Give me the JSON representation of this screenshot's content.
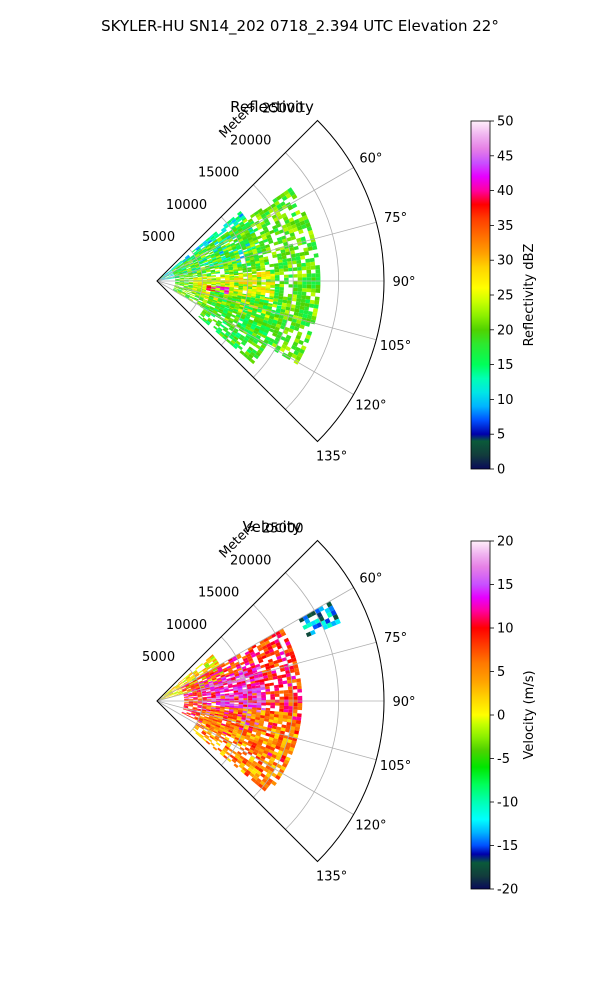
{
  "figure": {
    "title": "SKYLER-HU  SN14_202  0718_2.394 UTC Elevation 22°"
  },
  "chart_data": [
    {
      "type": "heatmap",
      "projection": "polar-sector",
      "title": "Reflectivity",
      "radial_axis_label": "Meters",
      "range_ticks": [
        5000,
        10000,
        15000,
        20000,
        25000
      ],
      "range_ticks_labels": [
        "5000",
        "10000",
        "15000",
        "20000",
        "25000"
      ],
      "azimuth_range_deg": [
        45,
        135
      ],
      "azimuth_ticks_deg": [
        60,
        75,
        90,
        105,
        120,
        135
      ],
      "azimuth_tick_labels": [
        "60°",
        "75°",
        "90°",
        "105°",
        "120°",
        "135°"
      ],
      "max_range_m": 25000,
      "grid": true,
      "colorbar": {
        "label": "Reflectivity dBZ",
        "min": 0,
        "max": 50,
        "ticks": [
          0,
          5,
          10,
          15,
          20,
          25,
          30,
          35,
          40,
          45,
          50
        ],
        "tick_labels": [
          "0",
          "5",
          "10",
          "15",
          "20",
          "25",
          "30",
          "35",
          "40",
          "45",
          "50"
        ]
      },
      "echo_regions": [
        {
          "az": [
            50,
            80
          ],
          "range": [
            0,
            12000
          ],
          "value": 12
        },
        {
          "az": [
            55,
            120
          ],
          "range": [
            2000,
            18000
          ],
          "value": 20
        },
        {
          "az": [
            85,
            110
          ],
          "range": [
            4000,
            13000
          ],
          "value": 26
        },
        {
          "az": [
            95,
            100
          ],
          "range": [
            5500,
            8000
          ],
          "value": 42
        },
        {
          "az": [
            100,
            130
          ],
          "range": [
            6000,
            14000
          ],
          "value": 18
        }
      ]
    },
    {
      "type": "heatmap",
      "projection": "polar-sector",
      "title": "Velocity",
      "radial_axis_label": "Meters",
      "range_ticks": [
        5000,
        10000,
        15000,
        20000,
        25000
      ],
      "range_ticks_labels": [
        "5000",
        "10000",
        "15000",
        "20000",
        "25000"
      ],
      "azimuth_range_deg": [
        45,
        135
      ],
      "azimuth_ticks_deg": [
        60,
        75,
        90,
        105,
        120,
        135
      ],
      "azimuth_tick_labels": [
        "60°",
        "75°",
        "90°",
        "105°",
        "120°",
        "135°"
      ],
      "max_range_m": 25000,
      "grid": true,
      "colorbar": {
        "label": "Velocity (m/s)",
        "min": -20,
        "max": 20,
        "ticks": [
          -20,
          -15,
          -10,
          -5,
          0,
          5,
          10,
          15,
          20
        ],
        "tick_labels": [
          "-20",
          "-15",
          "-10",
          "-5",
          "0",
          "5",
          "10",
          "15",
          "20"
        ]
      },
      "echo_regions": [
        {
          "az": [
            50,
            75
          ],
          "range": [
            0,
            8000
          ],
          "value": 1
        },
        {
          "az": [
            60,
            115
          ],
          "range": [
            3000,
            16000
          ],
          "value": 9
        },
        {
          "az": [
            70,
            105
          ],
          "range": [
            5000,
            12000
          ],
          "value": 14
        },
        {
          "az": [
            95,
            130
          ],
          "range": [
            5000,
            16000
          ],
          "value": 5
        },
        {
          "az": [
            60,
            66
          ],
          "range": [
            18000,
            22000
          ],
          "value": -14
        }
      ]
    }
  ],
  "colors": {
    "grid": "#b0b0b0",
    "axis": "#000000"
  }
}
